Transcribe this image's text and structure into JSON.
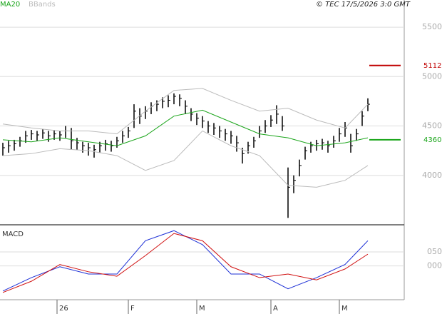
{
  "chart_data": [
    {
      "type": "ohlc",
      "legend": [
        "MA20",
        "BBands"
      ],
      "credit": "© TEC 17/5/2026 3:0 GMT",
      "xlim": [
        -0.5,
        70.375
      ],
      "ylim": [
        3500,
        5775
      ],
      "yticks": [
        4000,
        4500,
        5000,
        5500
      ],
      "grid": true,
      "color": "#000",
      "high": [
        4330,
        4350,
        4360,
        4390,
        4450,
        4460,
        4450,
        4470,
        4450,
        4460,
        4450,
        4500,
        4480,
        4380,
        4340,
        4330,
        4310,
        4340,
        4360,
        4350,
        4390,
        4450,
        4490,
        4720,
        4680,
        4700,
        4740,
        4760,
        4790,
        4810,
        4830,
        4820,
        4760,
        4680,
        4630,
        4600,
        4550,
        4530,
        4500,
        4470,
        4450,
        4400,
        4280,
        4340,
        4390,
        4500,
        4560,
        4610,
        4710,
        4600,
        4080,
        4000,
        4160,
        4290,
        4340,
        4360,
        4370,
        4350,
        4400,
        4480,
        4540,
        4420,
        4470,
        4650,
        4780
      ],
      "low": [
        4200,
        4230,
        4250,
        4290,
        4330,
        4360,
        4350,
        4370,
        4340,
        4360,
        4350,
        4380,
        4260,
        4260,
        4230,
        4200,
        4180,
        4230,
        4250,
        4240,
        4280,
        4330,
        4380,
        4480,
        4520,
        4570,
        4620,
        4650,
        4680,
        4690,
        4720,
        4700,
        4620,
        4550,
        4510,
        4480,
        4430,
        4410,
        4380,
        4350,
        4320,
        4240,
        4120,
        4220,
        4280,
        4380,
        4430,
        4490,
        4520,
        4450,
        3570,
        3820,
        3990,
        4160,
        4230,
        4250,
        4260,
        4230,
        4280,
        4340,
        4390,
        4230,
        4350,
        4500,
        4650
      ],
      "close": [
        4280,
        4300,
        4320,
        4350,
        4400,
        4420,
        4410,
        4430,
        4400,
        4420,
        4410,
        4450,
        4350,
        4330,
        4300,
        4280,
        4260,
        4300,
        4320,
        4300,
        4350,
        4400,
        4450,
        4650,
        4600,
        4650,
        4700,
        4720,
        4750,
        4760,
        4800,
        4780,
        4700,
        4620,
        4580,
        4550,
        4500,
        4480,
        4450,
        4420,
        4400,
        4330,
        4220,
        4300,
        4350,
        4450,
        4500,
        4560,
        4620,
        4500,
        3880,
        3950,
        4100,
        4250,
        4300,
        4320,
        4330,
        4300,
        4350,
        4420,
        4480,
        4300,
        4420,
        4600,
        4720
      ],
      "series": [
        {
          "name": "MA20",
          "color": "#1aa51a",
          "x": [
            0,
            5,
            10,
            15,
            20,
            25,
            30,
            35,
            40,
            45,
            50,
            55,
            60,
            64
          ],
          "values": [
            4360,
            4340,
            4380,
            4340,
            4300,
            4400,
            4600,
            4660,
            4540,
            4420,
            4380,
            4300,
            4330,
            4380
          ]
        },
        {
          "name": "BBands",
          "color": "#bbb",
          "x": [
            0,
            5,
            10,
            15,
            20,
            25,
            30,
            35,
            40,
            45,
            50,
            55,
            60,
            64
          ],
          "values": [
            4520,
            4480,
            4450,
            4450,
            4420,
            4650,
            4860,
            4880,
            4760,
            4650,
            4680,
            4560,
            4480,
            4720
          ]
        },
        {
          "color": "#bbb",
          "x": [
            0,
            5,
            10,
            15,
            20,
            25,
            30,
            35,
            40,
            45,
            50,
            55,
            60,
            64
          ],
          "values": [
            4200,
            4220,
            4270,
            4250,
            4200,
            4050,
            4150,
            4450,
            4300,
            4200,
            3900,
            3880,
            3950,
            4100
          ]
        }
      ],
      "levels": [
        {
          "value": 5112,
          "color": "#c00000"
        },
        {
          "value": 4360,
          "color": "#1aa51a"
        }
      ]
    },
    {
      "type": "line",
      "title": "MACD",
      "xlim": [
        -0.5,
        70.375
      ],
      "ylim": [
        -121,
        147
      ],
      "yticks": [
        {
          "value": 50,
          "label": "050"
        },
        {
          "value": 0,
          "label": "000"
        }
      ],
      "grid": true,
      "xticks": [
        {
          "value": 9.5,
          "label": "26"
        },
        {
          "value": 22,
          "label": "F"
        },
        {
          "value": 34,
          "label": "M"
        },
        {
          "value": 47,
          "label": "A"
        },
        {
          "value": 59,
          "label": "M"
        }
      ],
      "series": [
        {
          "color": "#1c2fd6",
          "x": [
            0,
            5,
            10,
            15,
            20,
            25,
            30,
            35,
            40,
            45,
            50,
            55,
            60,
            64
          ],
          "values": [
            -90,
            -42,
            -3,
            -29,
            -29,
            90,
            126,
            76,
            -29,
            -29,
            -82,
            -42,
            5,
            90
          ]
        },
        {
          "color": "#d01010",
          "x": [
            0,
            5,
            10,
            15,
            20,
            25,
            30,
            35,
            40,
            45,
            50,
            55,
            60,
            64
          ],
          "values": [
            -95,
            -55,
            5,
            -21,
            -37,
            37,
            116,
            90,
            -3,
            -42,
            -29,
            -50,
            -11,
            42
          ]
        }
      ]
    }
  ]
}
